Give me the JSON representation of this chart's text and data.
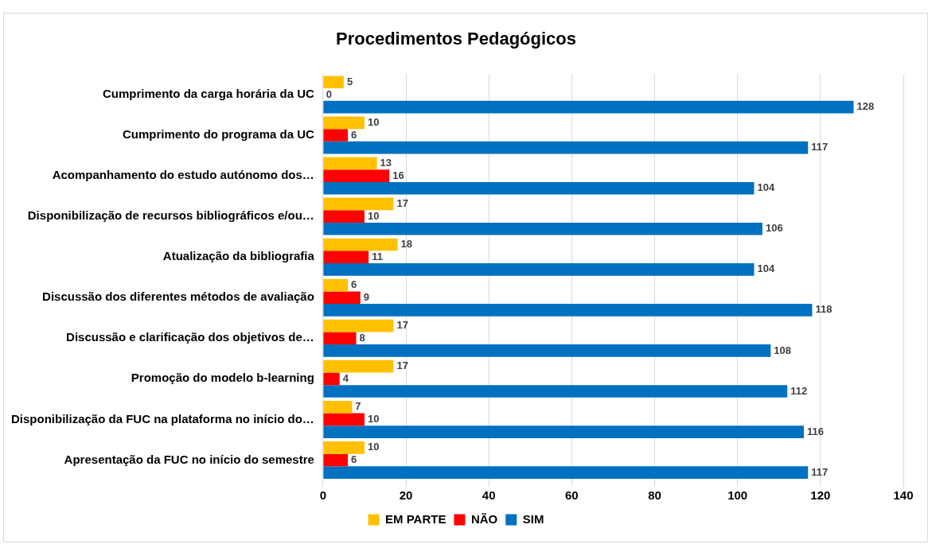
{
  "chart_data": {
    "type": "bar",
    "orientation": "horizontal",
    "title": "Procedimentos Pedagógicos",
    "categories": [
      "Cumprimento da carga horária da UC",
      "Cumprimento do programa da UC",
      "Acompanhamento do estudo autónomo dos…",
      "Disponibilização de recursos bibliográficos e/ou…",
      "Atualização da bibliografia",
      "Discussão dos diferentes métodos de avaliação",
      "Discussão e clarificação dos objetivos de…",
      "Promoção do modelo b-learning",
      "Disponibilização da FUC na plataforma no início do…",
      "Apresentação da FUC no início do semestre"
    ],
    "series": [
      {
        "name": "EM PARTE",
        "color": "#ffc000",
        "values": [
          5,
          10,
          13,
          17,
          18,
          6,
          17,
          17,
          7,
          10
        ]
      },
      {
        "name": "NÃO",
        "color": "#ff0000",
        "values": [
          0,
          6,
          16,
          10,
          11,
          9,
          8,
          4,
          10,
          6
        ]
      },
      {
        "name": "SIM",
        "color": "#0070c0",
        "values": [
          128,
          117,
          104,
          106,
          104,
          118,
          108,
          112,
          116,
          117
        ]
      }
    ],
    "xlim": [
      0,
      140
    ],
    "xticks": [
      0,
      20,
      40,
      60,
      80,
      100,
      120,
      140
    ],
    "grid": "x",
    "legend": "bottom",
    "data_labels": true
  }
}
